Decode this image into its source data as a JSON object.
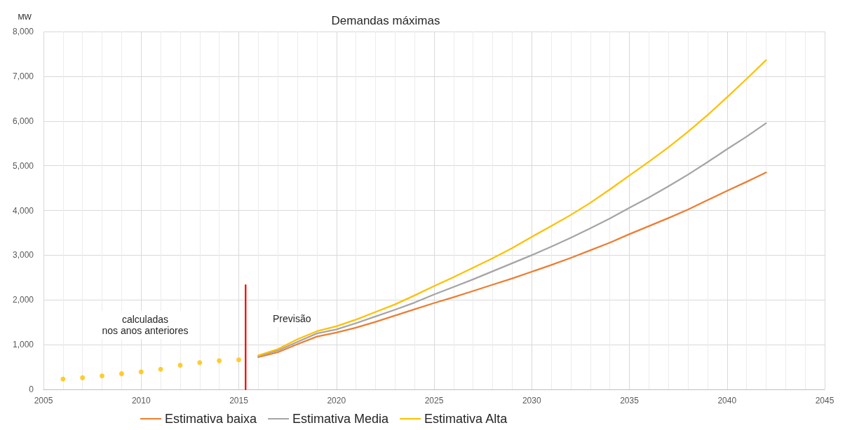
{
  "chart_data": {
    "type": "line",
    "title": "Demandas máximas",
    "ylabel": "MW",
    "annotations": [
      "calculadas\nnos anos anteriores",
      "Previsão"
    ],
    "x": [
      2016,
      2017,
      2018,
      2019,
      2020,
      2021,
      2022,
      2023,
      2024,
      2025,
      2026,
      2027,
      2028,
      2029,
      2030,
      2031,
      2032,
      2033,
      2034,
      2035,
      2036,
      2037,
      2038,
      2039,
      2040,
      2041,
      2042
    ],
    "series": [
      {
        "type": "scatter",
        "color": "#ffc000",
        "marker": "circle",
        "x": [
          2006,
          2007,
          2008,
          2009,
          2010,
          2011,
          2012,
          2013,
          2014,
          2015
        ],
        "values": [
          230,
          260,
          300,
          350,
          390,
          450,
          540,
          600,
          640,
          660
        ]
      },
      {
        "type": "line",
        "color": "#ff0000",
        "x": [
          2015.35,
          2015.35
        ],
        "values": [
          0,
          2330
        ]
      },
      {
        "name": "Estimativa baixa",
        "color": "#ed7d31",
        "values": [
          720,
          830,
          1010,
          1180,
          1270,
          1380,
          1510,
          1650,
          1790,
          1930,
          2060,
          2200,
          2340,
          2480,
          2630,
          2780,
          2940,
          3110,
          3280,
          3470,
          3650,
          3830,
          4020,
          4230,
          4440,
          4640,
          4850
        ]
      },
      {
        "name": "Estimativa Media",
        "color": "#a5a5a5",
        "values": [
          740,
          870,
          1060,
          1250,
          1340,
          1480,
          1630,
          1780,
          1940,
          2120,
          2290,
          2460,
          2640,
          2820,
          3000,
          3190,
          3390,
          3600,
          3820,
          4060,
          4290,
          4540,
          4800,
          5080,
          5370,
          5650,
          5950
        ]
      },
      {
        "name": "Estimativa Alta",
        "color": "#ffc000",
        "values": [
          760,
          900,
          1120,
          1300,
          1410,
          1560,
          1730,
          1900,
          2100,
          2310,
          2510,
          2720,
          2930,
          3160,
          3410,
          3650,
          3900,
          4170,
          4470,
          4780,
          5090,
          5410,
          5760,
          6130,
          6530,
          6940,
          7360
        ]
      }
    ],
    "xlim": [
      2005,
      2045
    ],
    "xticks": [
      2005,
      {
        "value": 2006,
        "label": null
      },
      {
        "value": 2007,
        "label": null
      },
      {
        "value": 2008,
        "label": null
      },
      {
        "value": 2009,
        "label": null
      },
      2010,
      {
        "value": 2011,
        "label": null
      },
      {
        "value": 2012,
        "label": null
      },
      {
        "value": 2013,
        "label": null
      },
      {
        "value": 2014,
        "label": null
      },
      2015,
      {
        "value": 2016,
        "label": null
      },
      {
        "value": 2017,
        "label": null
      },
      {
        "value": 2018,
        "label": null
      },
      {
        "value": 2019,
        "label": null
      },
      2020,
      {
        "value": 2021,
        "label": null
      },
      {
        "value": 2022,
        "label": null
      },
      {
        "value": 2023,
        "label": null
      },
      {
        "value": 2024,
        "label": null
      },
      2025,
      {
        "value": 2026,
        "label": null
      },
      {
        "value": 2027,
        "label": null
      },
      {
        "value": 2028,
        "label": null
      },
      {
        "value": 2029,
        "label": null
      },
      2030,
      {
        "value": 2031,
        "label": null
      },
      {
        "value": 2032,
        "label": null
      },
      {
        "value": 2033,
        "label": null
      },
      {
        "value": 2034,
        "label": null
      },
      2035,
      {
        "value": 2036,
        "label": null
      },
      {
        "value": 2037,
        "label": null
      },
      {
        "value": 2038,
        "label": null
      },
      {
        "value": 2039,
        "label": null
      },
      2040,
      {
        "value": 2041,
        "label": null
      },
      {
        "value": 2042,
        "label": null
      },
      {
        "value": 2043,
        "label": null
      },
      {
        "value": 2044,
        "label": null
      },
      2045
    ],
    "ylim": [
      0,
      8000
    ],
    "yticks": [
      0,
      {
        "value": 1000,
        "label": "1,000"
      },
      {
        "value": 2000,
        "label": "2,000"
      },
      {
        "value": 3000,
        "label": "3,000"
      },
      {
        "value": 4000,
        "label": "4,000"
      },
      {
        "value": 5000,
        "label": "5,000"
      },
      {
        "value": 6000,
        "label": "6,000"
      },
      {
        "value": 7000,
        "label": "7,000"
      },
      {
        "value": 8000,
        "label": "8,000"
      }
    ],
    "grid": true,
    "legend": "bottom"
  }
}
